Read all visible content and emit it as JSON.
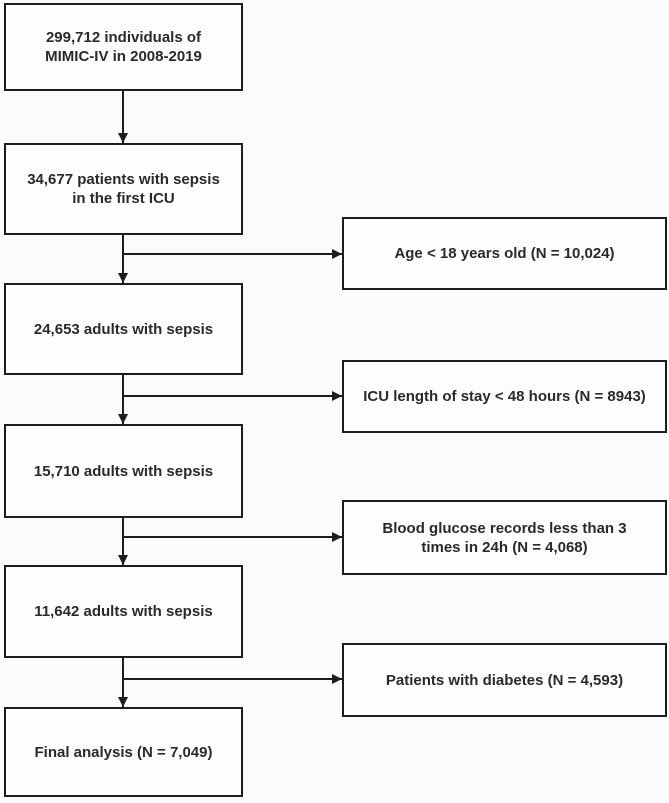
{
  "colors": {
    "background": "#fbfbfb",
    "box_fill": "#fdfdfd",
    "line": "#1d1d1d",
    "text": "#2a2a2a"
  },
  "flow": {
    "main_boxes": [
      {
        "text": "299,712 individuals of\nMIMIC-IV in 2008-2019"
      },
      {
        "text": "34,677 patients with sepsis\nin the first ICU"
      },
      {
        "text": "24,653 adults with sepsis"
      },
      {
        "text": "15,710 adults with sepsis"
      },
      {
        "text": "11,642 adults with sepsis"
      },
      {
        "text": "Final analysis (N = 7,049)"
      }
    ],
    "exclusion_boxes": [
      {
        "text": "Age < 18 years old (N = 10,024)"
      },
      {
        "text": "ICU length of stay < 48 hours (N = 8943)"
      },
      {
        "text": "Blood glucose records less than 3\ntimes in 24h (N = 4,068)"
      },
      {
        "text": "Patients with diabetes (N = 4,593)"
      }
    ]
  }
}
